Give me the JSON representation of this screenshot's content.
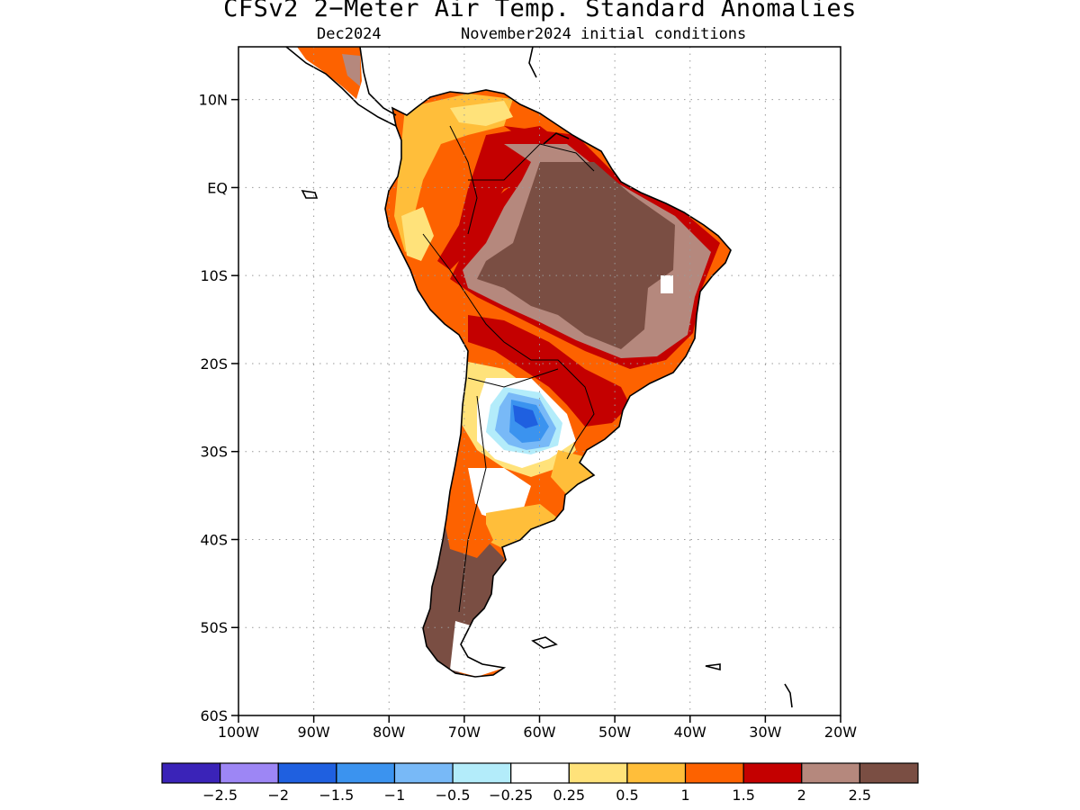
{
  "header": {
    "title": "CFSv2 2−Meter Air Temp. Standard Anomalies",
    "month": "Dec2024",
    "init": "November2024 initial conditions"
  },
  "map": {
    "region": "South America",
    "lat_labels": [
      "10N",
      "EQ",
      "10S",
      "20S",
      "30S",
      "40S",
      "50S",
      "60S"
    ],
    "lon_labels": [
      "100W",
      "90W",
      "80W",
      "70W",
      "60W",
      "50W",
      "40W",
      "30W",
      "20W"
    ],
    "lat_range": [
      -60,
      16
    ],
    "lon_range": [
      -100,
      -20
    ],
    "grid": "dotted"
  },
  "colorbar": {
    "colors": [
      "#3a23b8",
      "#9d86f5",
      "#1f60e0",
      "#3b93ef",
      "#78b9f7",
      "#b3ecfa",
      "#ffffff",
      "#ffe27a",
      "#ffbe3a",
      "#fd6200",
      "#c40000",
      "#b5887d",
      "#7a4e43"
    ],
    "labels": [
      "−2.5",
      "−2",
      "−1.5",
      "−1",
      "−0.5",
      "−0.25",
      "0.25",
      "0.5",
      "1",
      "1.5",
      "2",
      "2.5"
    ]
  },
  "colors": {
    "neutral": "#ffffff",
    "warm_1": "#ffe27a",
    "warm_2": "#ffbe3a",
    "warm_3": "#fd6200",
    "warm_4": "#c40000",
    "warm_5": "#b5887d",
    "warm_6": "#7a4e43",
    "cool_1": "#b3ecfa",
    "cool_2": "#78b9f7",
    "cool_3": "#3b93ef",
    "cool_4": "#1f60e0"
  }
}
